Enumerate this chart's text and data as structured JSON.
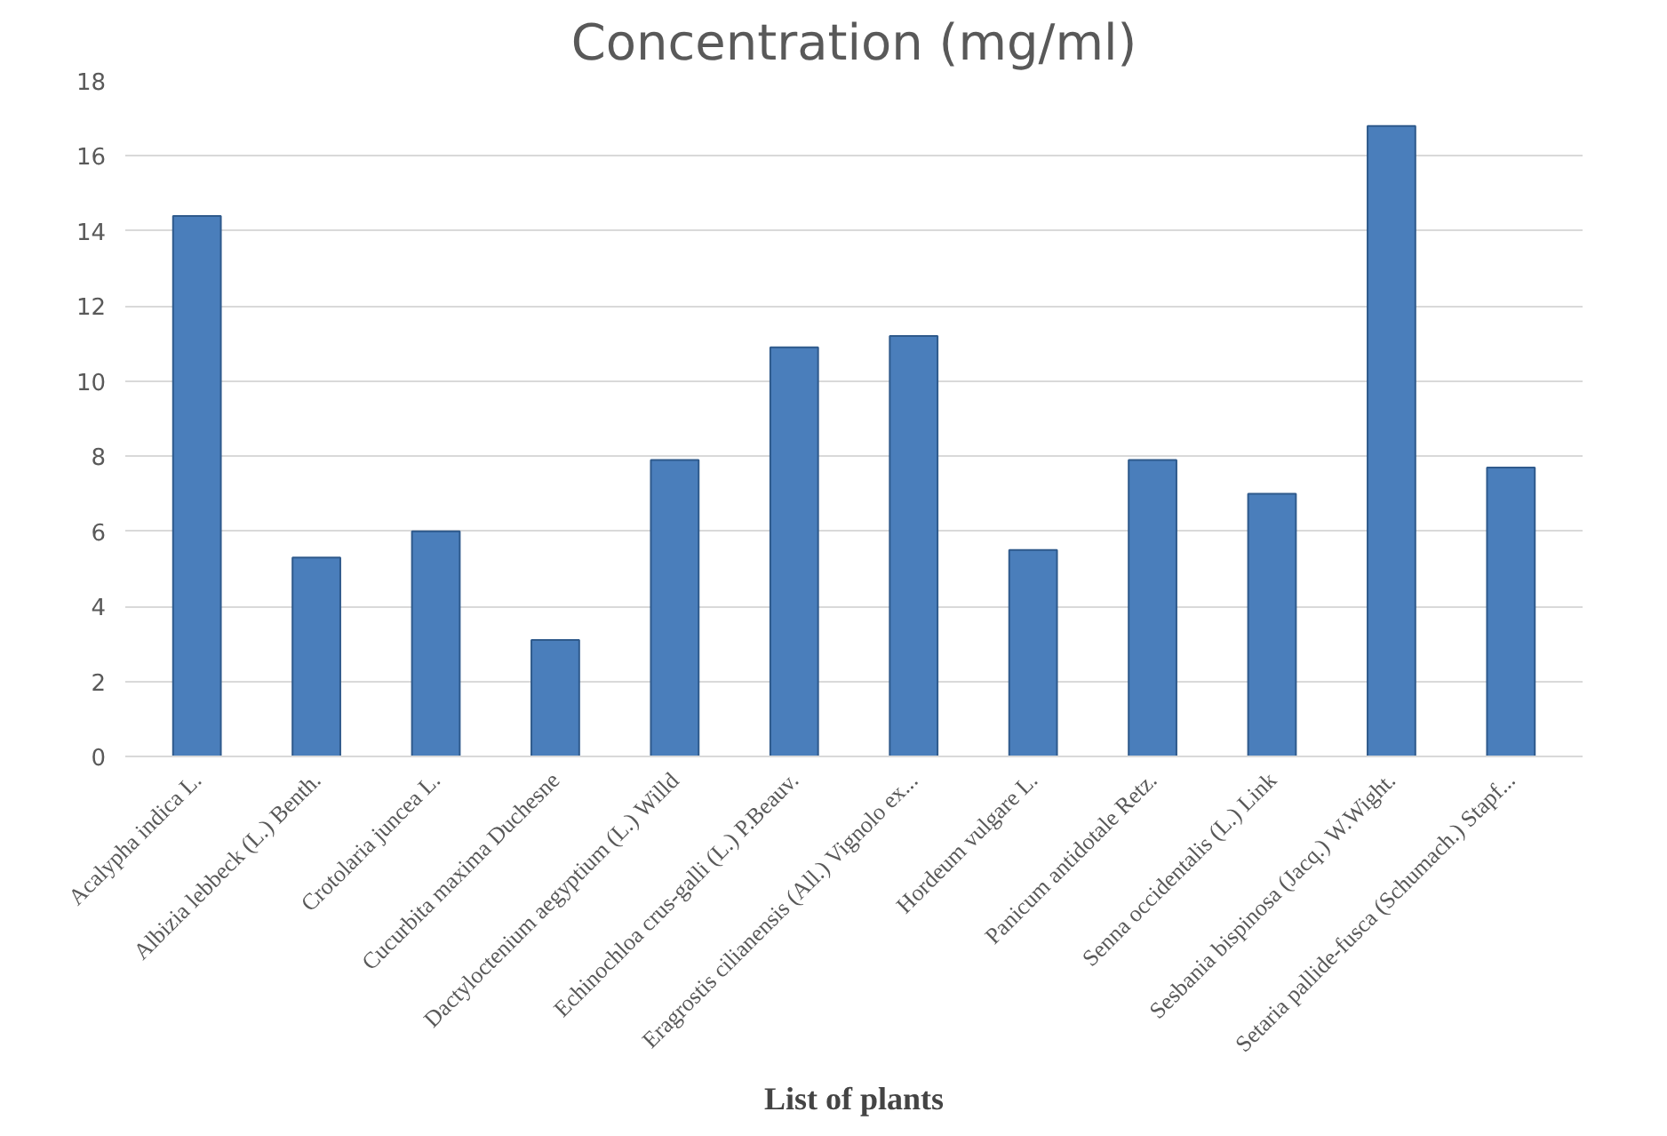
{
  "chart_data": {
    "type": "bar",
    "title": "Concentration (mg/ml)",
    "xlabel": "List of plants",
    "categories": [
      "Acalypha indica L.",
      "Albizia lebbeck (L.) Benth.",
      "Crotolaria juncea L.",
      "Cucurbita maxima Duchesne",
      "Dactyloctenium aegyptium (L.) Willd",
      "Echinochloa crus-galli (L.) P.Beauv.",
      "Eragrostis cilianensis (All.) Vignolo ex...",
      "Hordeum vulgare L.",
      "Panicum antidotale Retz.",
      "Senna occidentalis (L.) Link",
      "Sesbania bispinosa (Jacq.) W.Wight.",
      "Setaria pallide-fusca (Schumach.) Stapf..."
    ],
    "values": [
      14.4,
      5.3,
      6.0,
      3.1,
      7.9,
      10.9,
      11.2,
      5.5,
      7.9,
      7.0,
      16.8,
      7.7
    ],
    "color": "#4a7ebb",
    "ylim": [
      0,
      18
    ],
    "yticks": [
      0,
      2,
      4,
      6,
      8,
      10,
      12,
      14,
      16,
      18
    ],
    "grid": "y"
  }
}
